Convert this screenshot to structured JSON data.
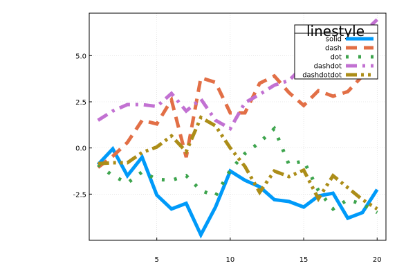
{
  "chart_data": {
    "type": "line",
    "title": "",
    "xlabel": "",
    "ylabel": "",
    "xlim": [
      0.4,
      20.6
    ],
    "ylim": [
      -5.0,
      7.3
    ],
    "xticks": [
      5,
      10,
      15,
      20
    ],
    "yticks": [
      -2.5,
      0.0,
      2.5,
      5.0
    ],
    "xtick_labels": [
      "5",
      "10",
      "15",
      "20"
    ],
    "ytick_labels": [
      "-2.5",
      "0.0",
      "2.5",
      "5.0"
    ],
    "grid": true,
    "legend": {
      "title": "linestyle",
      "placement": "top-right"
    },
    "x": [
      1,
      2,
      3,
      4,
      5,
      6,
      7,
      8,
      9,
      10,
      11,
      12,
      13,
      14,
      15,
      16,
      17,
      18,
      19,
      20
    ],
    "series": [
      {
        "name": "solid",
        "style": "solid",
        "color": "#009af9",
        "values": [
          -0.9,
          -0.05,
          -1.5,
          -0.5,
          -2.55,
          -3.3,
          -3.0,
          -4.7,
          -3.2,
          -1.25,
          -1.75,
          -2.1,
          -2.8,
          -2.9,
          -3.2,
          -2.6,
          -2.45,
          -3.8,
          -3.5,
          -2.25
        ]
      },
      {
        "name": "dash",
        "style": "dash",
        "color": "#e26f46",
        "values": [
          -1.05,
          -0.45,
          0.3,
          1.5,
          1.3,
          2.6,
          -0.5,
          3.8,
          3.55,
          1.9,
          1.9,
          3.5,
          3.9,
          3.0,
          2.3,
          3.1,
          2.8,
          3.05,
          3.9,
          3.8
        ]
      },
      {
        "name": "dot",
        "style": "dot",
        "color": "#3da44d",
        "values": [
          -0.9,
          -1.5,
          -1.9,
          -1.3,
          -1.7,
          -1.75,
          -1.5,
          -2.3,
          -2.6,
          -1.2,
          -0.3,
          0.3,
          1.05,
          -0.9,
          -0.7,
          -2.3,
          -3.3,
          -2.8,
          -3.05,
          -3.5
        ]
      },
      {
        "name": "dashdot",
        "style": "dashdot",
        "color": "#c271d2",
        "values": [
          1.5,
          2.0,
          2.35,
          2.35,
          2.25,
          2.95,
          2.0,
          2.65,
          1.5,
          1.05,
          2.45,
          2.9,
          3.4,
          3.65,
          4.45,
          5.0,
          5.6,
          5.6,
          6.2,
          6.95
        ]
      },
      {
        "name": "dashdotdot",
        "style": "dashdotdot",
        "color": "#ac8d18",
        "values": [
          -0.85,
          -0.8,
          -0.8,
          -0.25,
          0.05,
          0.65,
          -0.2,
          1.65,
          1.2,
          0.0,
          -1.0,
          -2.4,
          -1.25,
          -1.55,
          -1.2,
          -2.75,
          -1.5,
          -2.15,
          -2.8,
          -3.3
        ]
      }
    ]
  }
}
